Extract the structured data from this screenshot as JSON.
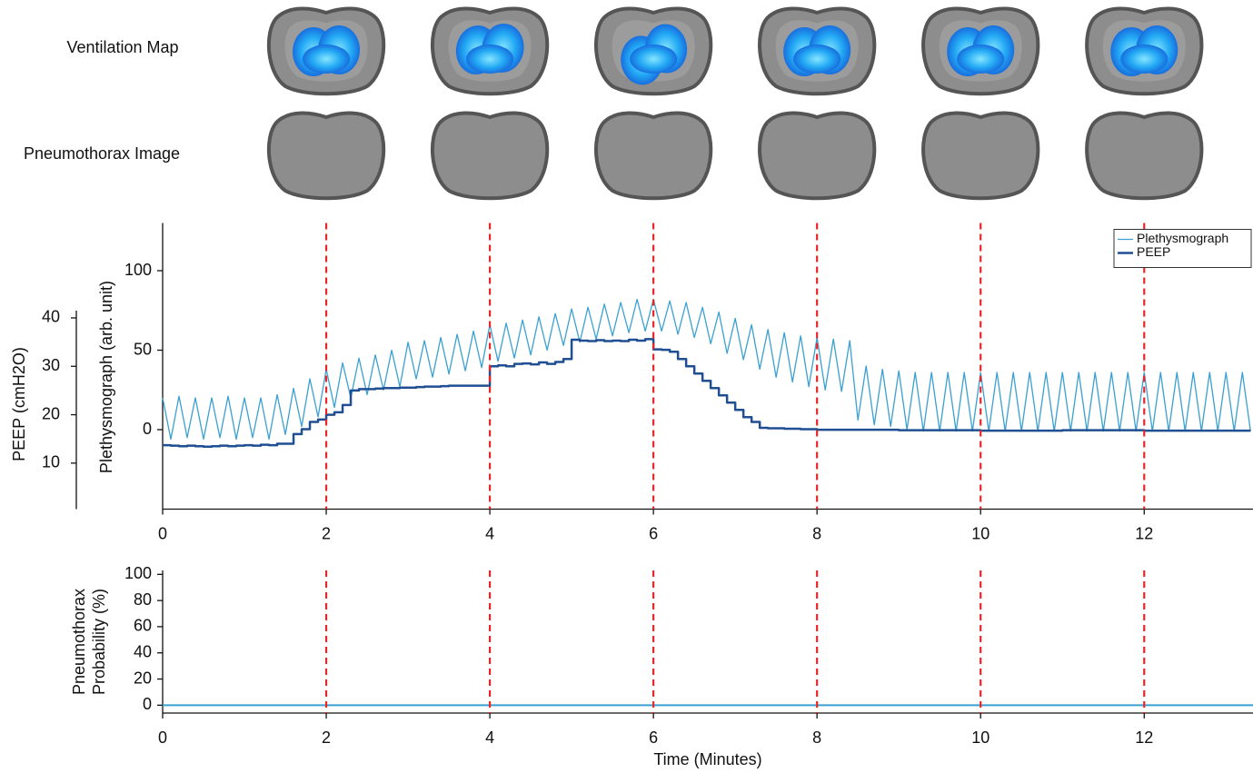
{
  "image_rows": [
    "Ventilation Map",
    "Pneumothorax Image"
  ],
  "chart_data": [
    {
      "type": "line",
      "ylabel": "Plethysmograph (arb. unit)",
      "y2label": "PEEP (cmH2O)",
      "x": [
        0,
        0.1,
        0.2,
        0.3,
        0.4,
        0.5,
        0.6,
        0.7,
        0.8,
        0.9,
        1,
        1.1,
        1.2,
        1.3,
        1.4,
        1.5,
        1.6,
        1.7,
        1.8,
        1.9,
        2,
        2.1,
        2.2,
        2.3,
        2.4,
        2.5,
        2.6,
        2.7,
        2.8,
        2.9,
        3,
        3.1,
        3.2,
        3.3,
        3.4,
        3.5,
        3.6,
        3.7,
        3.8,
        3.9,
        4,
        4.1,
        4.2,
        4.3,
        4.4,
        4.5,
        4.6,
        4.7,
        4.8,
        4.9,
        5,
        5.1,
        5.2,
        5.3,
        5.4,
        5.5,
        5.6,
        5.7,
        5.8,
        5.9,
        6,
        6.1,
        6.2,
        6.3,
        6.4,
        6.5,
        6.6,
        6.7,
        6.8,
        6.9,
        7,
        7.1,
        7.2,
        7.3,
        7.4,
        7.5,
        7.6,
        7.7,
        7.8,
        7.9,
        8,
        8.1,
        8.2,
        8.3,
        8.4,
        8.5,
        8.6,
        8.7,
        8.8,
        8.9,
        9,
        9.1,
        9.2,
        9.3,
        9.4,
        9.5,
        9.6,
        9.7,
        9.8,
        9.9,
        10,
        10.1,
        10.2,
        10.3,
        10.4,
        10.5,
        10.6,
        10.7,
        10.8,
        10.9,
        11,
        11.1,
        11.2,
        11.3,
        11.4,
        11.5,
        11.6,
        11.7,
        11.8,
        11.9,
        12,
        12.1,
        12.2,
        12.3,
        12.4,
        12.5,
        12.6,
        12.7,
        12.8,
        12.9,
        13,
        13.1,
        13.2,
        13.3
      ],
      "series": [
        {
          "name": "Plethysmograph",
          "color": "#3aa0d2",
          "width": 1.3,
          "values": [
            20,
            -6,
            21,
            -5,
            20,
            -6,
            20,
            -5,
            21,
            -6,
            20,
            -5,
            20,
            -6,
            22,
            -3,
            26,
            2,
            32,
            8,
            38,
            14,
            42,
            20,
            45,
            22,
            47,
            25,
            50,
            27,
            55,
            32,
            56,
            33,
            58,
            35,
            60,
            37,
            62,
            39,
            66,
            43,
            67,
            45,
            69,
            47,
            71,
            50,
            73,
            53,
            76,
            55,
            77,
            57,
            79,
            59,
            80,
            61,
            82,
            62,
            82,
            62,
            81,
            60,
            80,
            58,
            77,
            54,
            74,
            48,
            70,
            44,
            66,
            38,
            63,
            33,
            61,
            30,
            59,
            27,
            58,
            25,
            57,
            24,
            56,
            6,
            40,
            3,
            38,
            2,
            37,
            0,
            36,
            -1,
            36,
            -1,
            36,
            -1,
            36,
            -1,
            36,
            -1,
            36,
            -1,
            36,
            -1,
            36,
            -1,
            36,
            -1,
            36,
            -1,
            36,
            -1,
            36,
            -1,
            36,
            -1,
            36,
            -1,
            36,
            -1,
            36,
            -1,
            36,
            -1,
            36,
            -1,
            36,
            -1,
            36,
            -1,
            36,
            -1
          ]
        },
        {
          "name": "PEEP",
          "color": "#1f4f92",
          "width": 2.5,
          "axis": "y2",
          "step": true,
          "values": [
            13.7,
            13.6,
            13.5,
            13.6,
            13.5,
            13.4,
            13.5,
            13.6,
            13.5,
            13.6,
            13.7,
            13.6,
            13.8,
            13.7,
            14,
            14,
            16,
            17,
            18.5,
            19,
            20,
            20.5,
            22,
            25,
            25.3,
            25.3,
            25.4,
            25.5,
            25.5,
            25.6,
            25.6,
            25.7,
            25.8,
            25.8,
            25.9,
            26,
            26,
            26,
            26,
            26,
            30,
            30.2,
            30,
            30.5,
            30.6,
            30.4,
            30.8,
            30.5,
            30.9,
            31.5,
            35.5,
            35.3,
            35.2,
            35.4,
            35.2,
            35.3,
            35.2,
            35.5,
            35.3,
            35.6,
            33.5,
            33.4,
            33,
            31.5,
            30,
            28.5,
            27,
            25.5,
            24,
            22.5,
            21,
            19.5,
            18.5,
            17.3,
            17.2,
            17.2,
            17.1,
            17.1,
            17,
            17,
            16.9,
            16.9,
            16.9,
            16.9,
            16.9,
            16.9,
            16.9,
            16.9,
            16.9,
            16.9,
            16.8,
            16.8,
            16.8,
            16.8,
            16.8,
            16.8,
            16.8,
            16.8,
            16.8,
            16.8,
            16.7,
            16.7,
            16.7,
            16.7,
            16.7,
            16.7,
            16.7,
            16.7,
            16.7,
            16.7,
            16.8,
            16.8,
            16.8,
            16.8,
            16.8,
            16.8,
            16.8,
            16.8,
            16.8,
            16.8,
            16.7,
            16.7,
            16.7,
            16.7,
            16.7,
            16.7,
            16.7,
            16.7,
            16.7,
            16.7,
            16.7,
            16.7,
            16.7,
            16.7
          ]
        }
      ],
      "xlim": [
        0,
        13.33
      ],
      "xticks": [
        0,
        2,
        4,
        6,
        8,
        10,
        12
      ],
      "ylim": [
        -50,
        130
      ],
      "yticks": [
        0,
        50,
        100
      ],
      "y2lim": [
        0.5,
        59.6
      ],
      "y2ticks": [
        10,
        20,
        30,
        40
      ],
      "legend": "upper right",
      "vlines": [
        2,
        4,
        6,
        8,
        10,
        12
      ],
      "vline_color": "#e8262a"
    },
    {
      "type": "line",
      "ylabel": [
        "Pneumothorax",
        "Probability (%)"
      ],
      "xlabel": "Time (Minutes)",
      "x": [
        0,
        13.33
      ],
      "series": [
        {
          "color": "#3aa0d2",
          "width": 2,
          "values": [
            0,
            0
          ]
        }
      ],
      "xlim": [
        0,
        13.33
      ],
      "xticks": [
        0,
        2,
        4,
        6,
        8,
        10,
        12
      ],
      "ylim": [
        -6,
        103
      ],
      "yticks": [
        0,
        20,
        40,
        60,
        80,
        100
      ],
      "vlines": [
        2,
        4,
        6,
        8,
        10,
        12
      ],
      "vline_color": "#e8262a"
    }
  ]
}
